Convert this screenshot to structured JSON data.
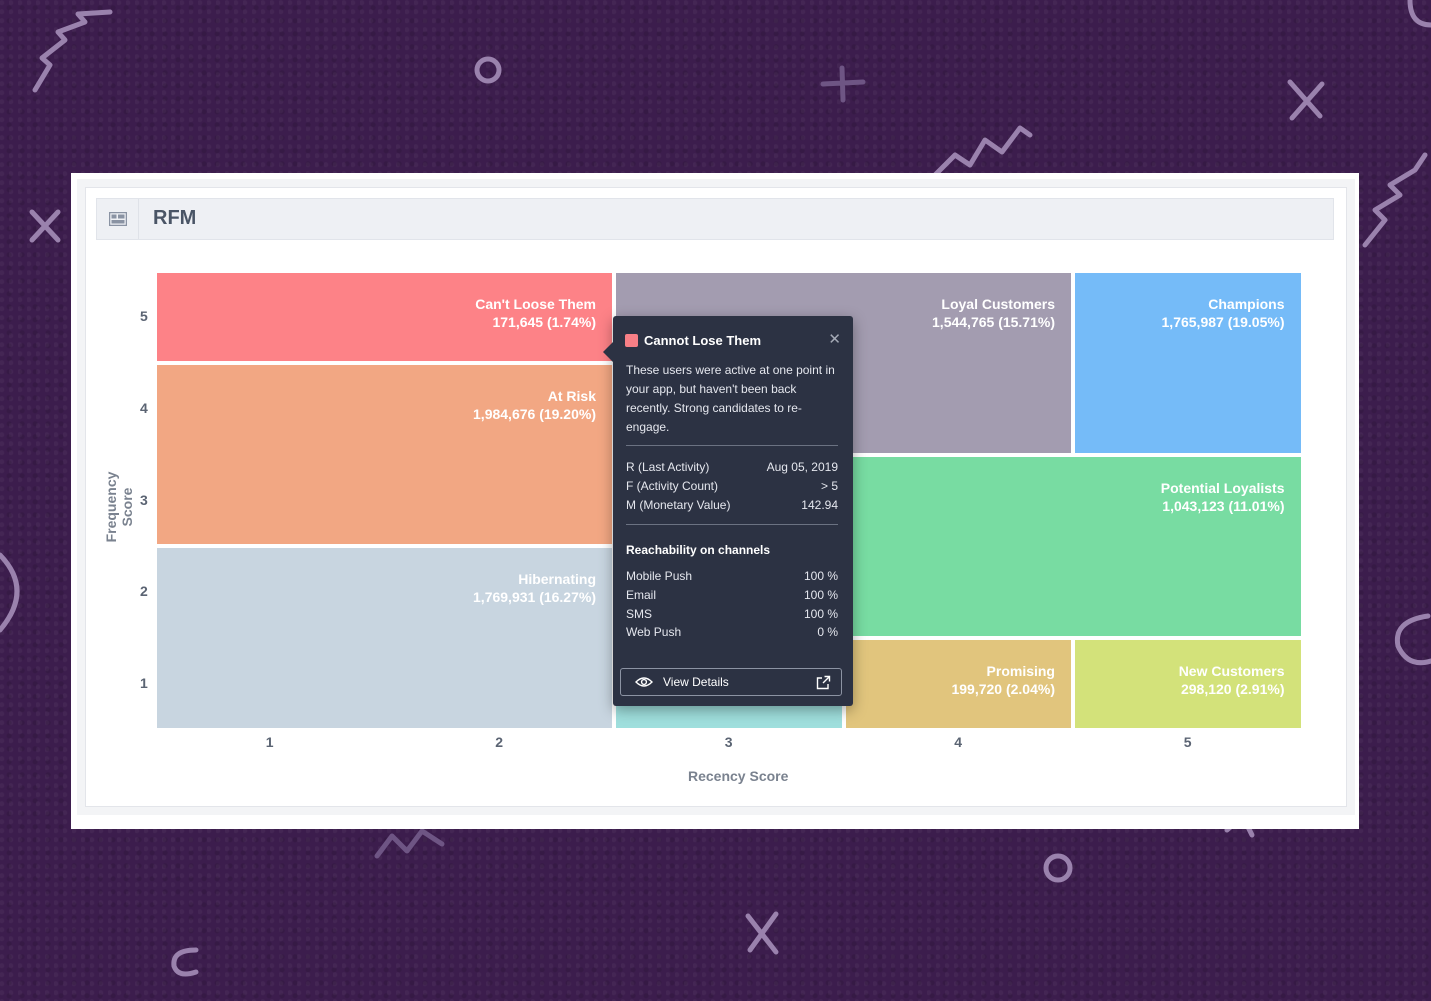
{
  "panel": {
    "title": "RFM",
    "icon": "dashboard-widget-icon"
  },
  "chart_data": {
    "type": "heatmap",
    "xlabel": "Recency Score",
    "ylabel": "Frequency Score",
    "x_ticks": [
      "1",
      "2",
      "3",
      "4",
      "5"
    ],
    "y_ticks": [
      "5",
      "4",
      "3",
      "2",
      "1"
    ],
    "segments": [
      {
        "name": "Can't Loose Them",
        "value": "171,645 (1.74%)",
        "count": 171645,
        "percent": 1.74,
        "color": "#fd8287",
        "r_range": [
          1,
          2
        ],
        "f_range": [
          5,
          5
        ]
      },
      {
        "name": "At Risk",
        "value": "1,984,676 (19.20%)",
        "count": 1984676,
        "percent": 19.2,
        "color": "#f2a783",
        "r_range": [
          1,
          2
        ],
        "f_range": [
          3,
          4
        ]
      },
      {
        "name": "Hibernating",
        "value": "1,769,931 (16.27%)",
        "count": 1769931,
        "percent": 16.27,
        "color": "#c8d5e0",
        "r_range": [
          1,
          2
        ],
        "f_range": [
          1,
          2
        ]
      },
      {
        "name": "Loyal Customers",
        "value": "1,544,765 (15.71%)",
        "count": 1544765,
        "percent": 15.71,
        "color": "#a39cb0",
        "r_range": [
          3,
          4
        ],
        "f_range": [
          4,
          5
        ]
      },
      {
        "name": "Champions",
        "value": "1,765,987 (19.05%)",
        "count": 1765987,
        "percent": 19.05,
        "color": "#75bbf8",
        "r_range": [
          5,
          5
        ],
        "f_range": [
          4,
          5
        ]
      },
      {
        "name": "Potential Loyalists",
        "value": "1,043,123 (11.01%)",
        "count": 1043123,
        "percent": 11.01,
        "color": "#78dca2",
        "r_range": [
          3,
          5
        ],
        "f_range": [
          2,
          3
        ]
      },
      {
        "name": "",
        "value": "",
        "color": "#9fdfdd",
        "r_range": [
          3,
          3
        ],
        "f_range": [
          1,
          1
        ]
      },
      {
        "name": "Promising",
        "value": "199,720 (2.04%)",
        "count": 199720,
        "percent": 2.04,
        "color": "#e1c57d",
        "r_range": [
          4,
          4
        ],
        "f_range": [
          1,
          1
        ]
      },
      {
        "name": "New Customers",
        "value": "298,120 (2.91%)",
        "count": 298120,
        "percent": 2.91,
        "color": "#d3e27a",
        "r_range": [
          5,
          5
        ],
        "f_range": [
          1,
          1
        ]
      }
    ]
  },
  "tooltip": {
    "title": "Cannot Lose Them",
    "swatch_color": "#f87f86",
    "close_icon": "close-icon",
    "description": "These users were active at one point in your app, but haven't been back recently. Strong candidates to re-engage.",
    "metrics": [
      {
        "label": "R (Last Activity)",
        "value": "Aug 05, 2019"
      },
      {
        "label": "F (Activity Count)",
        "value": "> 5"
      },
      {
        "label": "M (Monetary Value)",
        "value": "142.94"
      }
    ],
    "reachability_title": "Reachability on channels",
    "channels": [
      {
        "label": "Mobile Push",
        "value": "100 %"
      },
      {
        "label": "Email",
        "value": "100 %"
      },
      {
        "label": "SMS",
        "value": "100 %"
      },
      {
        "label": "Web Push",
        "value": "0 %"
      }
    ],
    "button_label": "View Details"
  }
}
